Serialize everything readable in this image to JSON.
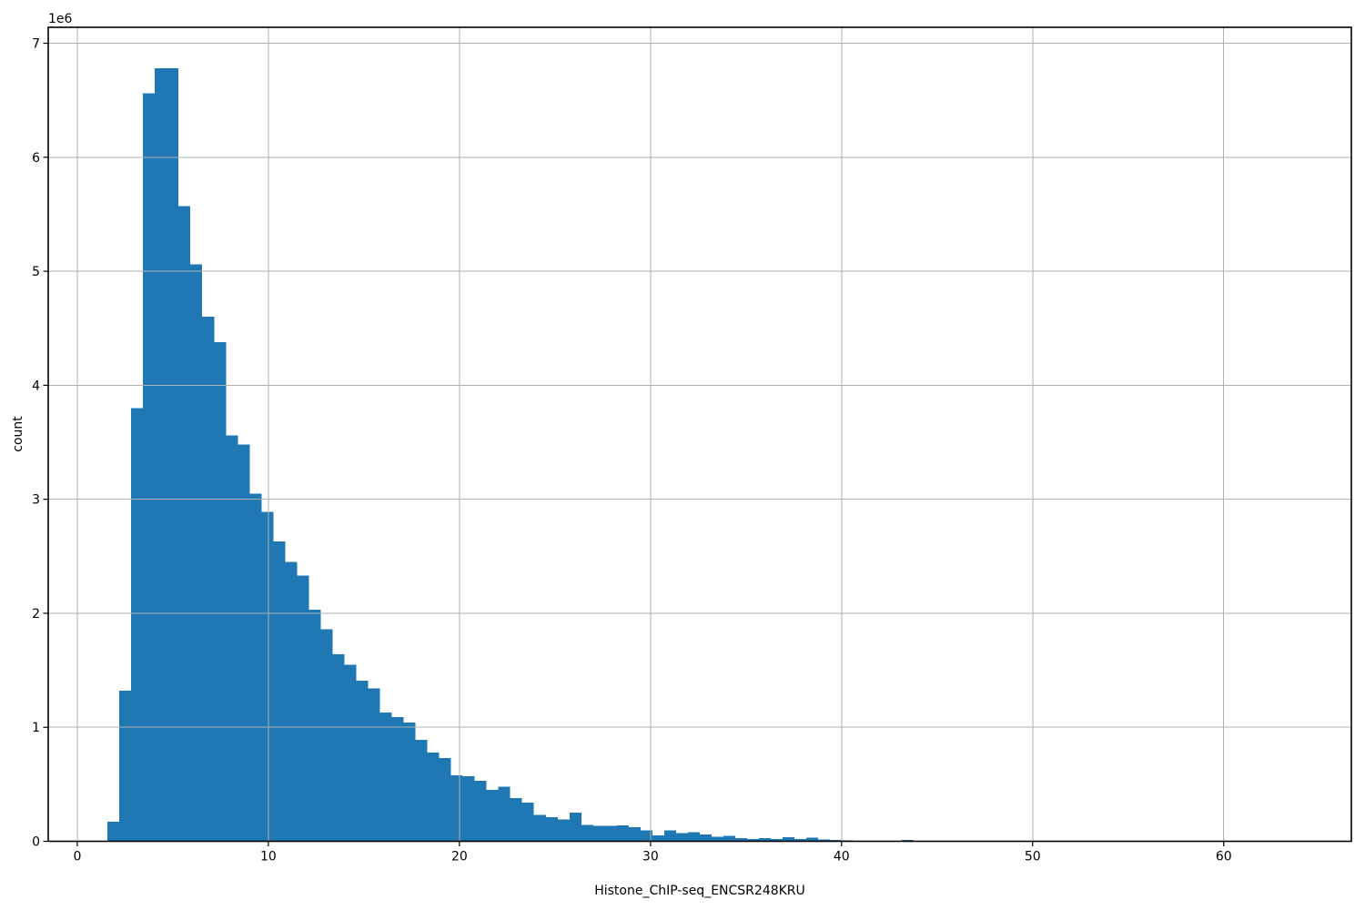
{
  "figure": {
    "background": "#ffffff"
  },
  "chart_data": {
    "type": "bar",
    "subtype": "histogram",
    "title": "",
    "xlabel": "Histone_ChIP-seq_ENCSR248KRU",
    "ylabel": "count",
    "y_axis_offset_text": "1e6",
    "bar_color": "#1f77b4",
    "grid_color": "#b0b0b0",
    "spine_color": "#000000",
    "background_color": "#ffffff",
    "grid": true,
    "legend_position": "none",
    "xlim": [
      -1.52,
      66.68
    ],
    "ylim": [
      0,
      7140000
    ],
    "x_ticks": [
      0,
      10,
      20,
      30,
      40,
      50,
      60
    ],
    "x_tick_labels": [
      "0",
      "10",
      "20",
      "30",
      "40",
      "50",
      "60"
    ],
    "y_ticks": [
      0,
      1000000,
      2000000,
      3000000,
      4000000,
      5000000,
      6000000,
      7000000
    ],
    "y_tick_labels": [
      "0",
      "1",
      "2",
      "3",
      "4",
      "5",
      "6",
      "7"
    ],
    "bins": {
      "start": 1.58,
      "width": 0.62
    },
    "counts": [
      170000,
      1320000,
      3800000,
      6560000,
      6780000,
      6780000,
      5570000,
      5060000,
      4600000,
      4380000,
      3560000,
      3480000,
      3050000,
      2890000,
      2630000,
      2450000,
      2330000,
      2030000,
      1860000,
      1640000,
      1550000,
      1410000,
      1340000,
      1130000,
      1090000,
      1040000,
      890000,
      780000,
      730000,
      580000,
      570000,
      530000,
      450000,
      480000,
      380000,
      340000,
      230000,
      210000,
      190000,
      250000,
      145000,
      135000,
      135000,
      140000,
      125000,
      95000,
      50000,
      95000,
      72000,
      80000,
      60000,
      40000,
      48000,
      28000,
      20000,
      28000,
      20000,
      36000,
      20000,
      30000,
      16000,
      10000,
      6000,
      4000,
      3000,
      2000,
      2000,
      10000,
      1500,
      1000,
      800,
      600,
      500,
      400,
      300,
      300,
      200,
      200,
      100,
      100,
      100,
      100,
      0,
      0,
      0,
      0,
      0,
      0,
      0,
      0,
      0,
      0,
      0,
      0,
      0,
      0,
      0,
      0,
      0,
      0
    ]
  }
}
